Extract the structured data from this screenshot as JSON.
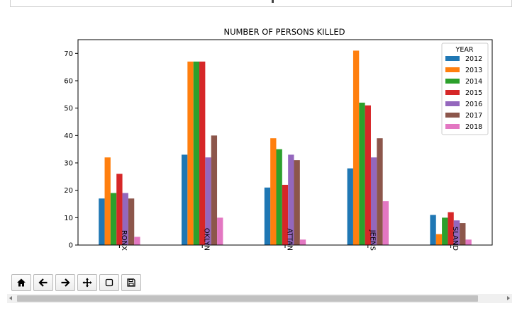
{
  "chart_data": {
    "type": "bar",
    "title": "NUMBER OF PERSONS KILLED",
    "xlabel": "",
    "ylabel": "",
    "ylim": [
      0,
      75
    ],
    "yticks": [
      0,
      10,
      20,
      30,
      40,
      50,
      60,
      70
    ],
    "categories": [
      "BRONX",
      "BROOKLYN",
      "MANHATTAN",
      "QUEENS",
      "STATEN ISLAND"
    ],
    "category_labels_visible": [
      "RONX",
      "OKLYN",
      "ATTAN",
      "JEENS",
      "SLAND"
    ],
    "legend": {
      "title": "YEAR",
      "placement": "top-right"
    },
    "series": [
      {
        "name": "2012",
        "color": "#1f77b4",
        "values": [
          17,
          33,
          21,
          28,
          11
        ]
      },
      {
        "name": "2013",
        "color": "#ff7f0e",
        "values": [
          32,
          67,
          39,
          71,
          4
        ]
      },
      {
        "name": "2014",
        "color": "#2ca02c",
        "values": [
          19,
          67,
          35,
          52,
          10
        ]
      },
      {
        "name": "2015",
        "color": "#d62728",
        "values": [
          26,
          67,
          22,
          51,
          12
        ]
      },
      {
        "name": "2016",
        "color": "#9467bd",
        "values": [
          19,
          32,
          33,
          32,
          9
        ]
      },
      {
        "name": "2017",
        "color": "#8c564b",
        "values": [
          17,
          40,
          31,
          39,
          8
        ]
      },
      {
        "name": "2018",
        "color": "#e377c2",
        "values": [
          3,
          10,
          2,
          16,
          2
        ]
      }
    ],
    "grid": false
  },
  "toolbar": {
    "buttons": [
      {
        "name": "home-button",
        "icon": "home-icon"
      },
      {
        "name": "back-button",
        "icon": "arrow-left-icon"
      },
      {
        "name": "forward-button",
        "icon": "arrow-right-icon"
      },
      {
        "name": "pan-button",
        "icon": "move-icon"
      },
      {
        "name": "zoom-button",
        "icon": "square-icon"
      },
      {
        "name": "save-button",
        "icon": "floppy-disk-icon"
      }
    ]
  }
}
